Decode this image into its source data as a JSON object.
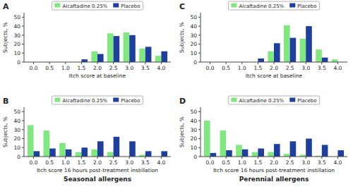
{
  "chart_data": [
    {
      "type": "bar",
      "title": "A",
      "xlabel": "Itch score at baseline",
      "ylabel": "Subjects, %",
      "x": [
        1.5,
        2.0,
        2.5,
        3.0,
        3.5,
        4.0
      ],
      "series": [
        {
          "name": "Alcaftadine 0.25%",
          "color": "#7FE87F",
          "values": [
            0,
            12,
            32,
            33,
            15,
            7
          ]
        },
        {
          "name": "Placebo",
          "color": "#1F3F9F",
          "values": [
            3,
            9,
            29,
            30,
            17,
            12
          ]
        }
      ],
      "xlim": [
        -0.3,
        4.3
      ],
      "ylim": [
        0,
        55
      ],
      "xticks": [
        {
          "value": 0.0,
          "label": "0.0"
        },
        0.5,
        {
          "value": 1.0,
          "label": "1.0"
        },
        1.5,
        {
          "value": 2.0,
          "label": "2.0"
        },
        2.5,
        {
          "value": 3.0,
          "label": "3.0"
        },
        3.5,
        {
          "value": 4.0,
          "label": "4.0"
        }
      ],
      "yticks": [
        0,
        10,
        20,
        30,
        40,
        50
      ],
      "legend": "top",
      "grid": false
    },
    {
      "type": "bar",
      "title": "C",
      "xlabel": "Itch score at baseline",
      "ylabel": "Subjects, %",
      "x": [
        1.5,
        2.0,
        2.5,
        3.0,
        3.5,
        4.0
      ],
      "series": [
        {
          "name": "Alcaftadine 0.25%",
          "color": "#7FE87F",
          "values": [
            0,
            12,
            41,
            26,
            14,
            3
          ]
        },
        {
          "name": "Placebo",
          "color": "#1F3F9F",
          "values": [
            4,
            21,
            27,
            40,
            5,
            0
          ]
        }
      ],
      "xlim": [
        -0.3,
        4.3
      ],
      "ylim": [
        0,
        55
      ],
      "xticks": [
        {
          "value": 0.0,
          "label": "0.0"
        },
        0.5,
        {
          "value": 1.0,
          "label": "1.0"
        },
        1.5,
        {
          "value": 2.0,
          "label": "2.0"
        },
        2.5,
        {
          "value": 3.0,
          "label": "3.0"
        },
        3.5,
        {
          "value": 4.0,
          "label": "4.0"
        }
      ],
      "yticks": [
        0,
        10,
        20,
        30,
        40,
        50
      ],
      "legend": "top",
      "grid": false
    },
    {
      "type": "bar",
      "title": "B",
      "subtitle": "Seasonal allergens",
      "xlabel": "Itch score 16 hours post-treatment instillation",
      "ylabel": "Subjects, %",
      "x": [
        0.0,
        0.5,
        1.0,
        1.5,
        2.0,
        2.5,
        3.0,
        3.5,
        4.0
      ],
      "series": [
        {
          "name": "Alcaftadine 0.25%",
          "color": "#7FE87F",
          "values": [
            35,
            29,
            15,
            5,
            8,
            5,
            0,
            2,
            0
          ]
        },
        {
          "name": "Placebo",
          "color": "#1F3F9F",
          "values": [
            6,
            9,
            8,
            10,
            17,
            22,
            17,
            6,
            6
          ]
        }
      ],
      "xlim": [
        -0.3,
        4.3
      ],
      "ylim": [
        0,
        55
      ],
      "xticks": [
        {
          "value": 0.0,
          "label": "0.0"
        },
        0.5,
        {
          "value": 1.0,
          "label": "1.0"
        },
        1.5,
        {
          "value": 2.0,
          "label": "2.0"
        },
        2.5,
        {
          "value": 3.0,
          "label": "3.0"
        },
        3.5,
        {
          "value": 4.0,
          "label": "4.0"
        }
      ],
      "yticks": [
        0,
        10,
        20,
        30,
        40,
        50
      ],
      "legend": "top",
      "grid": false
    },
    {
      "type": "bar",
      "title": "D",
      "subtitle": "Perennial allergens",
      "xlabel": "Itch score 16 hours post-treatment instillation",
      "ylabel": "Subjects, %",
      "x": [
        0.0,
        0.5,
        1.0,
        1.5,
        2.0,
        2.5,
        3.0,
        3.5,
        4.0
      ],
      "series": [
        {
          "name": "Alcaftadine 0.25%",
          "color": "#7FE87F",
          "values": [
            40,
            29,
            13,
            5,
            5,
            3,
            2,
            1,
            0
          ]
        },
        {
          "name": "Placebo",
          "color": "#1F3F9F",
          "values": [
            4,
            7,
            8,
            9,
            14,
            17,
            20,
            13,
            7
          ]
        }
      ],
      "xlim": [
        -0.3,
        4.3
      ],
      "ylim": [
        0,
        55
      ],
      "xticks": [
        {
          "value": 0.0,
          "label": "0.0"
        },
        0.5,
        {
          "value": 1.0,
          "label": "1.0"
        },
        1.5,
        {
          "value": 2.0,
          "label": "2.0"
        },
        2.5,
        {
          "value": 3.0,
          "label": "3.0"
        },
        3.5,
        {
          "value": 4.0,
          "label": "4.0"
        }
      ],
      "yticks": [
        0,
        10,
        20,
        30,
        40,
        50
      ],
      "legend": "top",
      "grid": false
    }
  ]
}
